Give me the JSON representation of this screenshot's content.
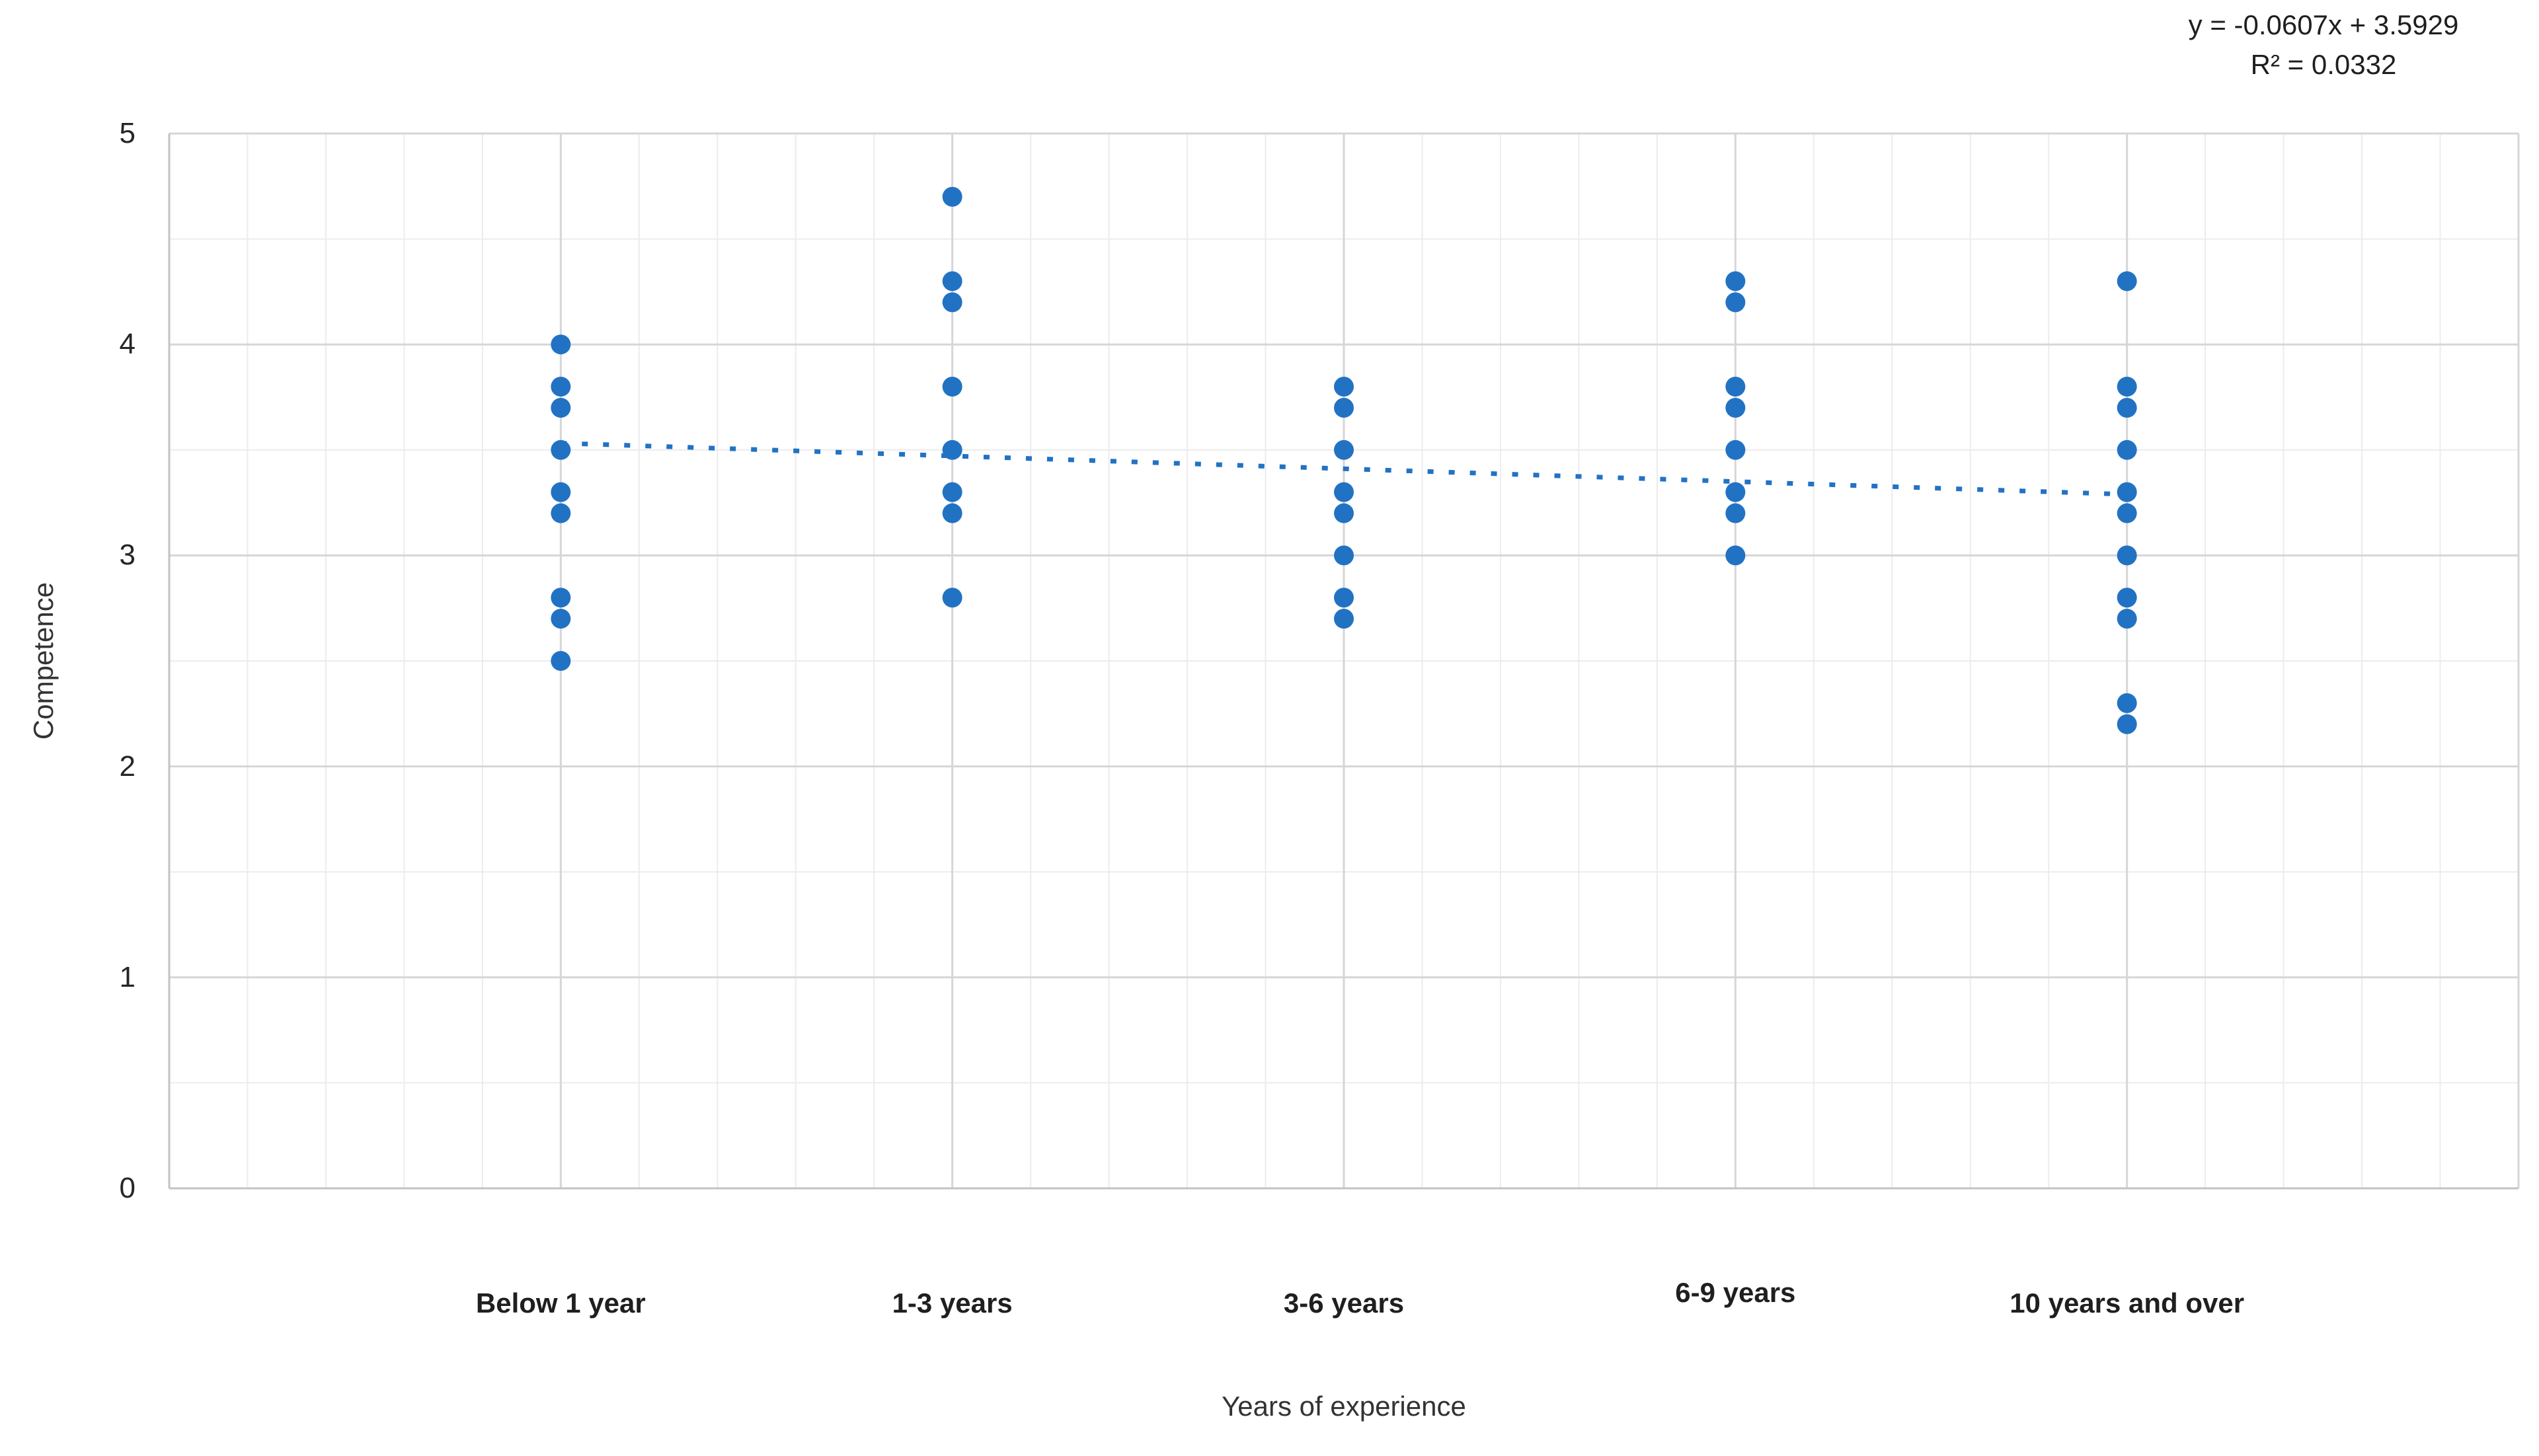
{
  "annotation": {
    "equation": "y = -0.0607x + 3.5929",
    "r_squared": "R² = 0.0332"
  },
  "chart_data": {
    "type": "scatter",
    "title": "",
    "xlabel": "Years of experience",
    "ylabel": "Competence",
    "categories": [
      "Below 1 year",
      "1-3 years",
      "3-6 years",
      "6-9 years",
      "10 years and over"
    ],
    "series": [
      {
        "name": "Competence vs Years of experience",
        "groups": [
          {
            "category": "Below 1 year",
            "x": 1,
            "values": [
              4.0,
              3.8,
              3.7,
              3.5,
              3.3,
              3.2,
              2.8,
              2.7,
              2.5
            ]
          },
          {
            "category": "1-3 years",
            "x": 2,
            "values": [
              4.7,
              4.3,
              4.2,
              3.8,
              3.5,
              3.3,
              3.2,
              2.8
            ]
          },
          {
            "category": "3-6 years",
            "x": 3,
            "values": [
              3.8,
              3.7,
              3.5,
              3.3,
              3.2,
              3.0,
              2.8,
              2.7
            ]
          },
          {
            "category": "6-9 years",
            "x": 4,
            "values": [
              4.3,
              4.2,
              3.8,
              3.7,
              3.5,
              3.3,
              3.2,
              3.0
            ]
          },
          {
            "category": "10 years and over",
            "x": 5,
            "values": [
              4.3,
              3.8,
              3.7,
              3.5,
              3.3,
              3.2,
              3.0,
              2.8,
              2.7,
              2.3,
              2.2
            ]
          }
        ]
      }
    ],
    "trendline": {
      "slope": -0.0607,
      "intercept": 3.5929,
      "x_start": 1,
      "x_end": 5,
      "style": "dotted"
    },
    "y_axis": {
      "min": 0,
      "max": 5,
      "major_unit": 1,
      "minor_unit": 0.5,
      "ticks": [
        5,
        4,
        3,
        2,
        1,
        0
      ]
    },
    "x_axis": {
      "min": 0,
      "max": 6,
      "major_unit": 1,
      "minor_unit": 0.2
    },
    "grid": {
      "minor": true,
      "major": true
    },
    "legend": "none",
    "colors": {
      "point": "#2272c4",
      "trendline": "#2272c4",
      "major_grid": "#d6d6d6",
      "minor_grid": "#ececec",
      "axis_line": "#c3c3c3"
    }
  }
}
